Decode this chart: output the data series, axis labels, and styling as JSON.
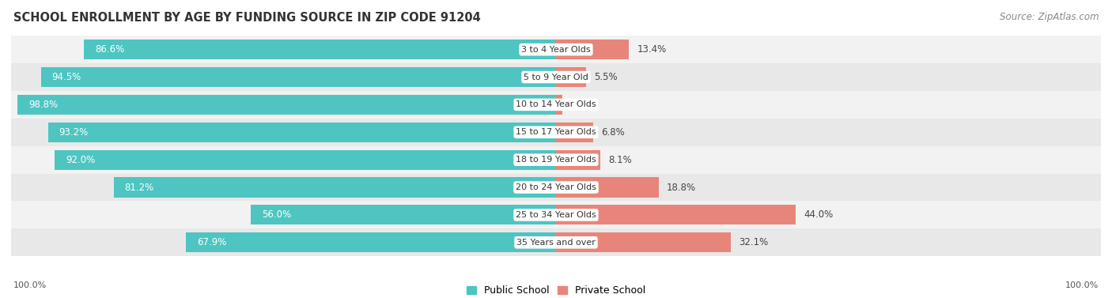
{
  "title": "SCHOOL ENROLLMENT BY AGE BY FUNDING SOURCE IN ZIP CODE 91204",
  "source": "Source: ZipAtlas.com",
  "categories": [
    "3 to 4 Year Olds",
    "5 to 9 Year Old",
    "10 to 14 Year Olds",
    "15 to 17 Year Olds",
    "18 to 19 Year Olds",
    "20 to 24 Year Olds",
    "25 to 34 Year Olds",
    "35 Years and over"
  ],
  "public_pct": [
    86.6,
    94.5,
    98.8,
    93.2,
    92.0,
    81.2,
    56.0,
    67.9
  ],
  "private_pct": [
    13.4,
    5.5,
    1.2,
    6.8,
    8.1,
    18.8,
    44.0,
    32.1
  ],
  "public_color": "#4ec5c1",
  "private_color": "#e8857a",
  "row_bg_light": "#f2f2f2",
  "row_bg_dark": "#e8e8e8",
  "bar_height": 0.72,
  "legend_public": "Public School",
  "legend_private": "Private School",
  "xlim_left_label": "100.0%",
  "xlim_right_label": "100.0%",
  "title_fontsize": 10.5,
  "source_fontsize": 8.5,
  "bar_label_fontsize": 8.5,
  "category_fontsize": 8,
  "axis_label_fontsize": 8
}
